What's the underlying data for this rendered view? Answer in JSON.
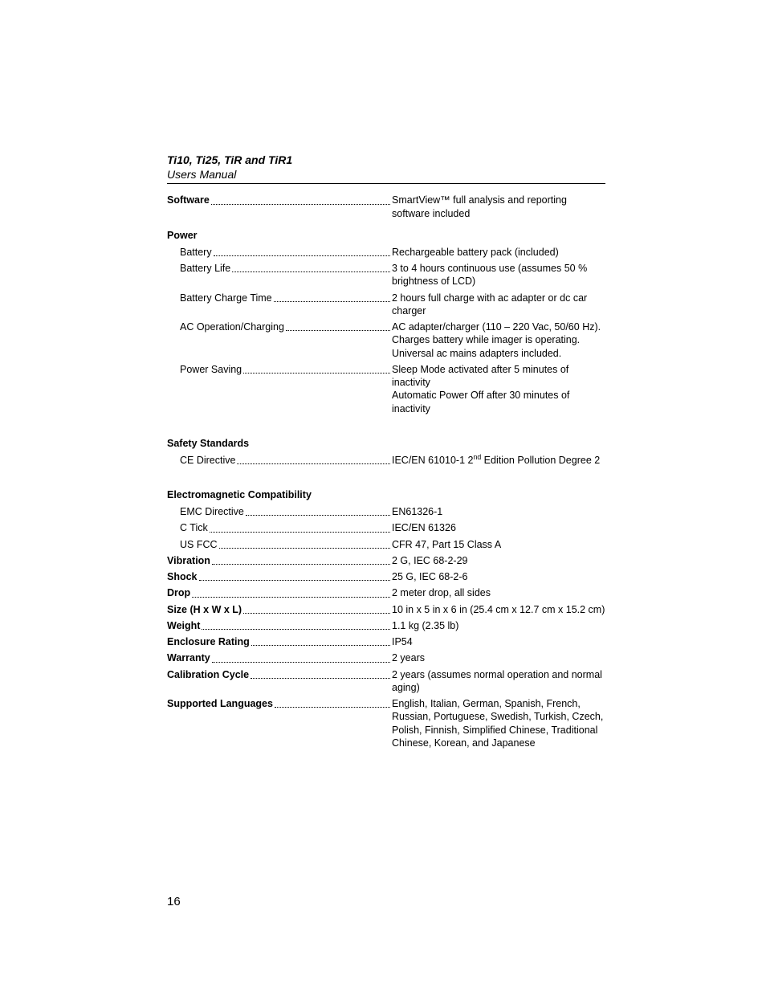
{
  "header": {
    "title": "Ti10, Ti25, TiR and TiR1",
    "subtitle": "Users Manual"
  },
  "page_number": "16",
  "specs": [
    {
      "type": "row",
      "label": "Software",
      "bold": true,
      "indent": false,
      "value": "SmartView™ full analysis and reporting software included"
    },
    {
      "type": "head",
      "label": "Power"
    },
    {
      "type": "row",
      "label": "Battery",
      "bold": false,
      "indent": true,
      "value": "Rechargeable battery pack (included)"
    },
    {
      "type": "row",
      "label": "Battery Life",
      "bold": false,
      "indent": true,
      "value": "3 to 4 hours continuous use (assumes 50 % brightness of LCD)"
    },
    {
      "type": "row",
      "label": "Battery Charge Time",
      "bold": false,
      "indent": true,
      "value": "2 hours full charge with ac adapter or dc car charger"
    },
    {
      "type": "row",
      "label": "AC Operation/Charging",
      "bold": false,
      "indent": true,
      "value": "AC adapter/charger (110 – 220 Vac, 50/60 Hz). Charges battery while imager is operating. Universal ac mains adapters included."
    },
    {
      "type": "row",
      "label": "Power Saving",
      "bold": false,
      "indent": true,
      "value": "Sleep Mode activated after 5 minutes of inactivity\nAutomatic Power Off after 30 minutes of inactivity"
    },
    {
      "type": "gap"
    },
    {
      "type": "head",
      "label": "Safety Standards"
    },
    {
      "type": "row",
      "label": "CE Directive",
      "bold": false,
      "indent": true,
      "value_html": "IEC/EN 61010-1 2<sup>nd</sup> Edition Pollution Degree 2"
    },
    {
      "type": "gap"
    },
    {
      "type": "head",
      "label": "Electromagnetic Compatibility"
    },
    {
      "type": "row",
      "label": "EMC Directive",
      "bold": false,
      "indent": true,
      "value": "EN61326-1"
    },
    {
      "type": "row",
      "label": "C Tick",
      "bold": false,
      "indent": true,
      "value": "IEC/EN 61326"
    },
    {
      "type": "row",
      "label": "US FCC",
      "bold": false,
      "indent": true,
      "value": "CFR 47, Part 15 Class A"
    },
    {
      "type": "row",
      "label": "Vibration",
      "bold": true,
      "indent": false,
      "value": "2 G, IEC 68-2-29"
    },
    {
      "type": "row",
      "label": "Shock",
      "bold": true,
      "indent": false,
      "value": "25 G, IEC 68-2-6"
    },
    {
      "type": "row",
      "label": "Drop",
      "bold": true,
      "indent": false,
      "value": "2 meter drop, all sides"
    },
    {
      "type": "row",
      "label": "Size (H x W x L)",
      "bold": true,
      "indent": false,
      "value": "10 in x 5 in x 6 in (25.4 cm x 12.7 cm x 15.2 cm)"
    },
    {
      "type": "row",
      "label": "Weight",
      "bold": true,
      "indent": false,
      "value": "1.1 kg (2.35 lb)"
    },
    {
      "type": "row",
      "label": "Enclosure Rating",
      "bold": true,
      "indent": false,
      "value": "IP54"
    },
    {
      "type": "row",
      "label": "Warranty",
      "bold": true,
      "indent": false,
      "value": "2 years"
    },
    {
      "type": "row",
      "label": "Calibration Cycle",
      "bold": true,
      "indent": false,
      "value": "2 years (assumes normal operation and normal aging)"
    },
    {
      "type": "row",
      "label": "Supported Languages",
      "bold": true,
      "indent": false,
      "value": "English, Italian, German, Spanish, French, Russian, Portuguese, Swedish, Turkish, Czech, Polish, Finnish, Simplified Chinese, Traditional Chinese, Korean, and Japanese"
    }
  ]
}
